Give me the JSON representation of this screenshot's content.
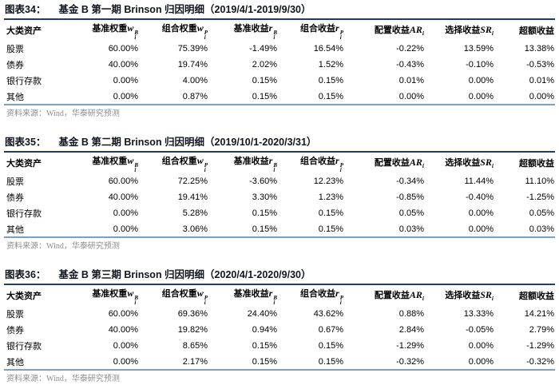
{
  "colors": {
    "title_rule": "#223c63",
    "table_bottom_rule": "#7d9fc0",
    "title_text": "#10151f",
    "body_text": "#000000",
    "source_text": "#8d8d8d",
    "background": "#ffffff"
  },
  "columns": {
    "asset": "大类资产",
    "c1": {
      "label": "基准权重",
      "var": "w",
      "sup": "B",
      "sub": "i"
    },
    "c2": {
      "label": "组合权重",
      "var": "w",
      "sup": "P",
      "sub": "i"
    },
    "c3": {
      "label": "基准收益",
      "var": "r",
      "sup": "B",
      "sub": "i"
    },
    "c4": {
      "label": "组合收益",
      "var": "r",
      "sup": "P",
      "sub": "i"
    },
    "c5": {
      "label": "配置收益",
      "var": "AR",
      "sub": "i"
    },
    "c6": {
      "label": "选择收益",
      "var": "SR",
      "sub": "i"
    },
    "c7": {
      "label": "超额收益"
    }
  },
  "source_note": "资料来源：Wind，华泰研究预测",
  "tables": [
    {
      "fig_label": "图表34：",
      "title": "基金 B 第一期 Brinson 归因明细（2019/4/1-2019/9/30）",
      "rows": [
        {
          "asset": "股票",
          "v": [
            "60.00%",
            "75.39%",
            "-1.49%",
            "16.54%",
            "-0.22%",
            "13.59%",
            "13.38%"
          ]
        },
        {
          "asset": "债券",
          "v": [
            "40.00%",
            "19.74%",
            "2.02%",
            "1.52%",
            "-0.43%",
            "-0.10%",
            "-0.53%"
          ]
        },
        {
          "asset": "银行存款",
          "v": [
            "0.00%",
            "4.00%",
            "0.15%",
            "0.15%",
            "0.01%",
            "0.00%",
            "0.01%"
          ]
        },
        {
          "asset": "其他",
          "v": [
            "0.00%",
            "0.87%",
            "0.15%",
            "0.15%",
            "0.00%",
            "0.00%",
            "0.00%"
          ]
        }
      ]
    },
    {
      "fig_label": "图表35：",
      "title": "基金 B 第二期 Brinson 归因明细（2019/10/1-2020/3/31）",
      "rows": [
        {
          "asset": "股票",
          "v": [
            "60.00%",
            "72.25%",
            "-3.60%",
            "12.23%",
            "-0.34%",
            "11.44%",
            "11.10%"
          ]
        },
        {
          "asset": "债券",
          "v": [
            "40.00%",
            "19.41%",
            "3.30%",
            "1.23%",
            "-0.85%",
            "-0.40%",
            "-1.25%"
          ]
        },
        {
          "asset": "银行存款",
          "v": [
            "0.00%",
            "5.28%",
            "0.15%",
            "0.15%",
            "0.05%",
            "0.00%",
            "0.05%"
          ]
        },
        {
          "asset": "其他",
          "v": [
            "0.00%",
            "3.06%",
            "0.15%",
            "0.15%",
            "0.03%",
            "0.00%",
            "0.03%"
          ]
        }
      ]
    },
    {
      "fig_label": "图表36：",
      "title": "基金 B 第三期 Brinson 归因明细（2020/4/1-2020/9/30）",
      "rows": [
        {
          "asset": "股票",
          "v": [
            "60.00%",
            "69.36%",
            "24.40%",
            "43.62%",
            "0.88%",
            "13.33%",
            "14.21%"
          ]
        },
        {
          "asset": "债券",
          "v": [
            "40.00%",
            "19.82%",
            "0.94%",
            "0.67%",
            "2.84%",
            "-0.05%",
            "2.79%"
          ]
        },
        {
          "asset": "银行存款",
          "v": [
            "0.00%",
            "8.65%",
            "0.15%",
            "0.15%",
            "-1.29%",
            "0.00%",
            "-1.29%"
          ]
        },
        {
          "asset": "其他",
          "v": [
            "0.00%",
            "2.17%",
            "0.15%",
            "0.15%",
            "-0.32%",
            "0.00%",
            "-0.32%"
          ]
        }
      ]
    }
  ]
}
